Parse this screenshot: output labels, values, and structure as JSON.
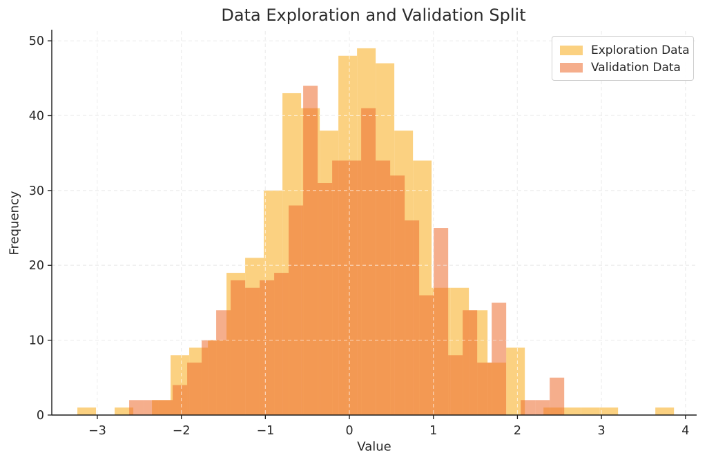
{
  "chart_data": {
    "type": "histogram",
    "title": "Data Exploration and Validation Split",
    "xlabel": "Value",
    "ylabel": "Frequency",
    "xlim": [
      -3.542,
      4.133
    ],
    "ylim": [
      0,
      51.3
    ],
    "grid": true,
    "grid_style": "dashed",
    "legend_position": "upper right",
    "xticks": [
      {
        "v": -3,
        "label": "−3"
      },
      {
        "v": -2,
        "label": "−2"
      },
      {
        "v": -1,
        "label": "−1"
      },
      {
        "v": 0,
        "label": "0"
      },
      {
        "v": 1,
        "label": "1"
      },
      {
        "v": 2,
        "label": "2"
      },
      {
        "v": 3,
        "label": "3"
      },
      {
        "v": 4,
        "label": "4"
      }
    ],
    "yticks": [
      {
        "v": 0,
        "label": "0"
      },
      {
        "v": 10,
        "label": "10"
      },
      {
        "v": 20,
        "label": "20"
      },
      {
        "v": 30,
        "label": "30"
      },
      {
        "v": 40,
        "label": "40"
      },
      {
        "v": 50,
        "label": "50"
      }
    ],
    "series": [
      {
        "name": "Exploration Data",
        "legend_color": "#FBD181",
        "fill": "#FBD181",
        "bin_start": -3.2375,
        "bin_width": 0.2219,
        "counts": [
          1,
          0,
          1,
          0,
          2,
          8,
          9,
          10,
          19,
          21,
          30,
          43,
          41,
          38,
          48,
          49,
          47,
          38,
          34,
          17,
          17,
          14,
          7,
          9,
          0,
          1,
          1,
          1,
          1,
          0,
          0,
          1
        ]
      },
      {
        "name": "Validation Data",
        "legend_color": "#F5AE8C",
        "fill": "rgba(237,108,46,0.55)",
        "bin_start": -2.6212,
        "bin_width": 0.1726,
        "counts": [
          2,
          2,
          2,
          4,
          7,
          10,
          14,
          18,
          17,
          18,
          19,
          28,
          44,
          31,
          34,
          34,
          41,
          34,
          32,
          26,
          16,
          25,
          8,
          14,
          7,
          15,
          0,
          2,
          2,
          5
        ]
      }
    ]
  }
}
